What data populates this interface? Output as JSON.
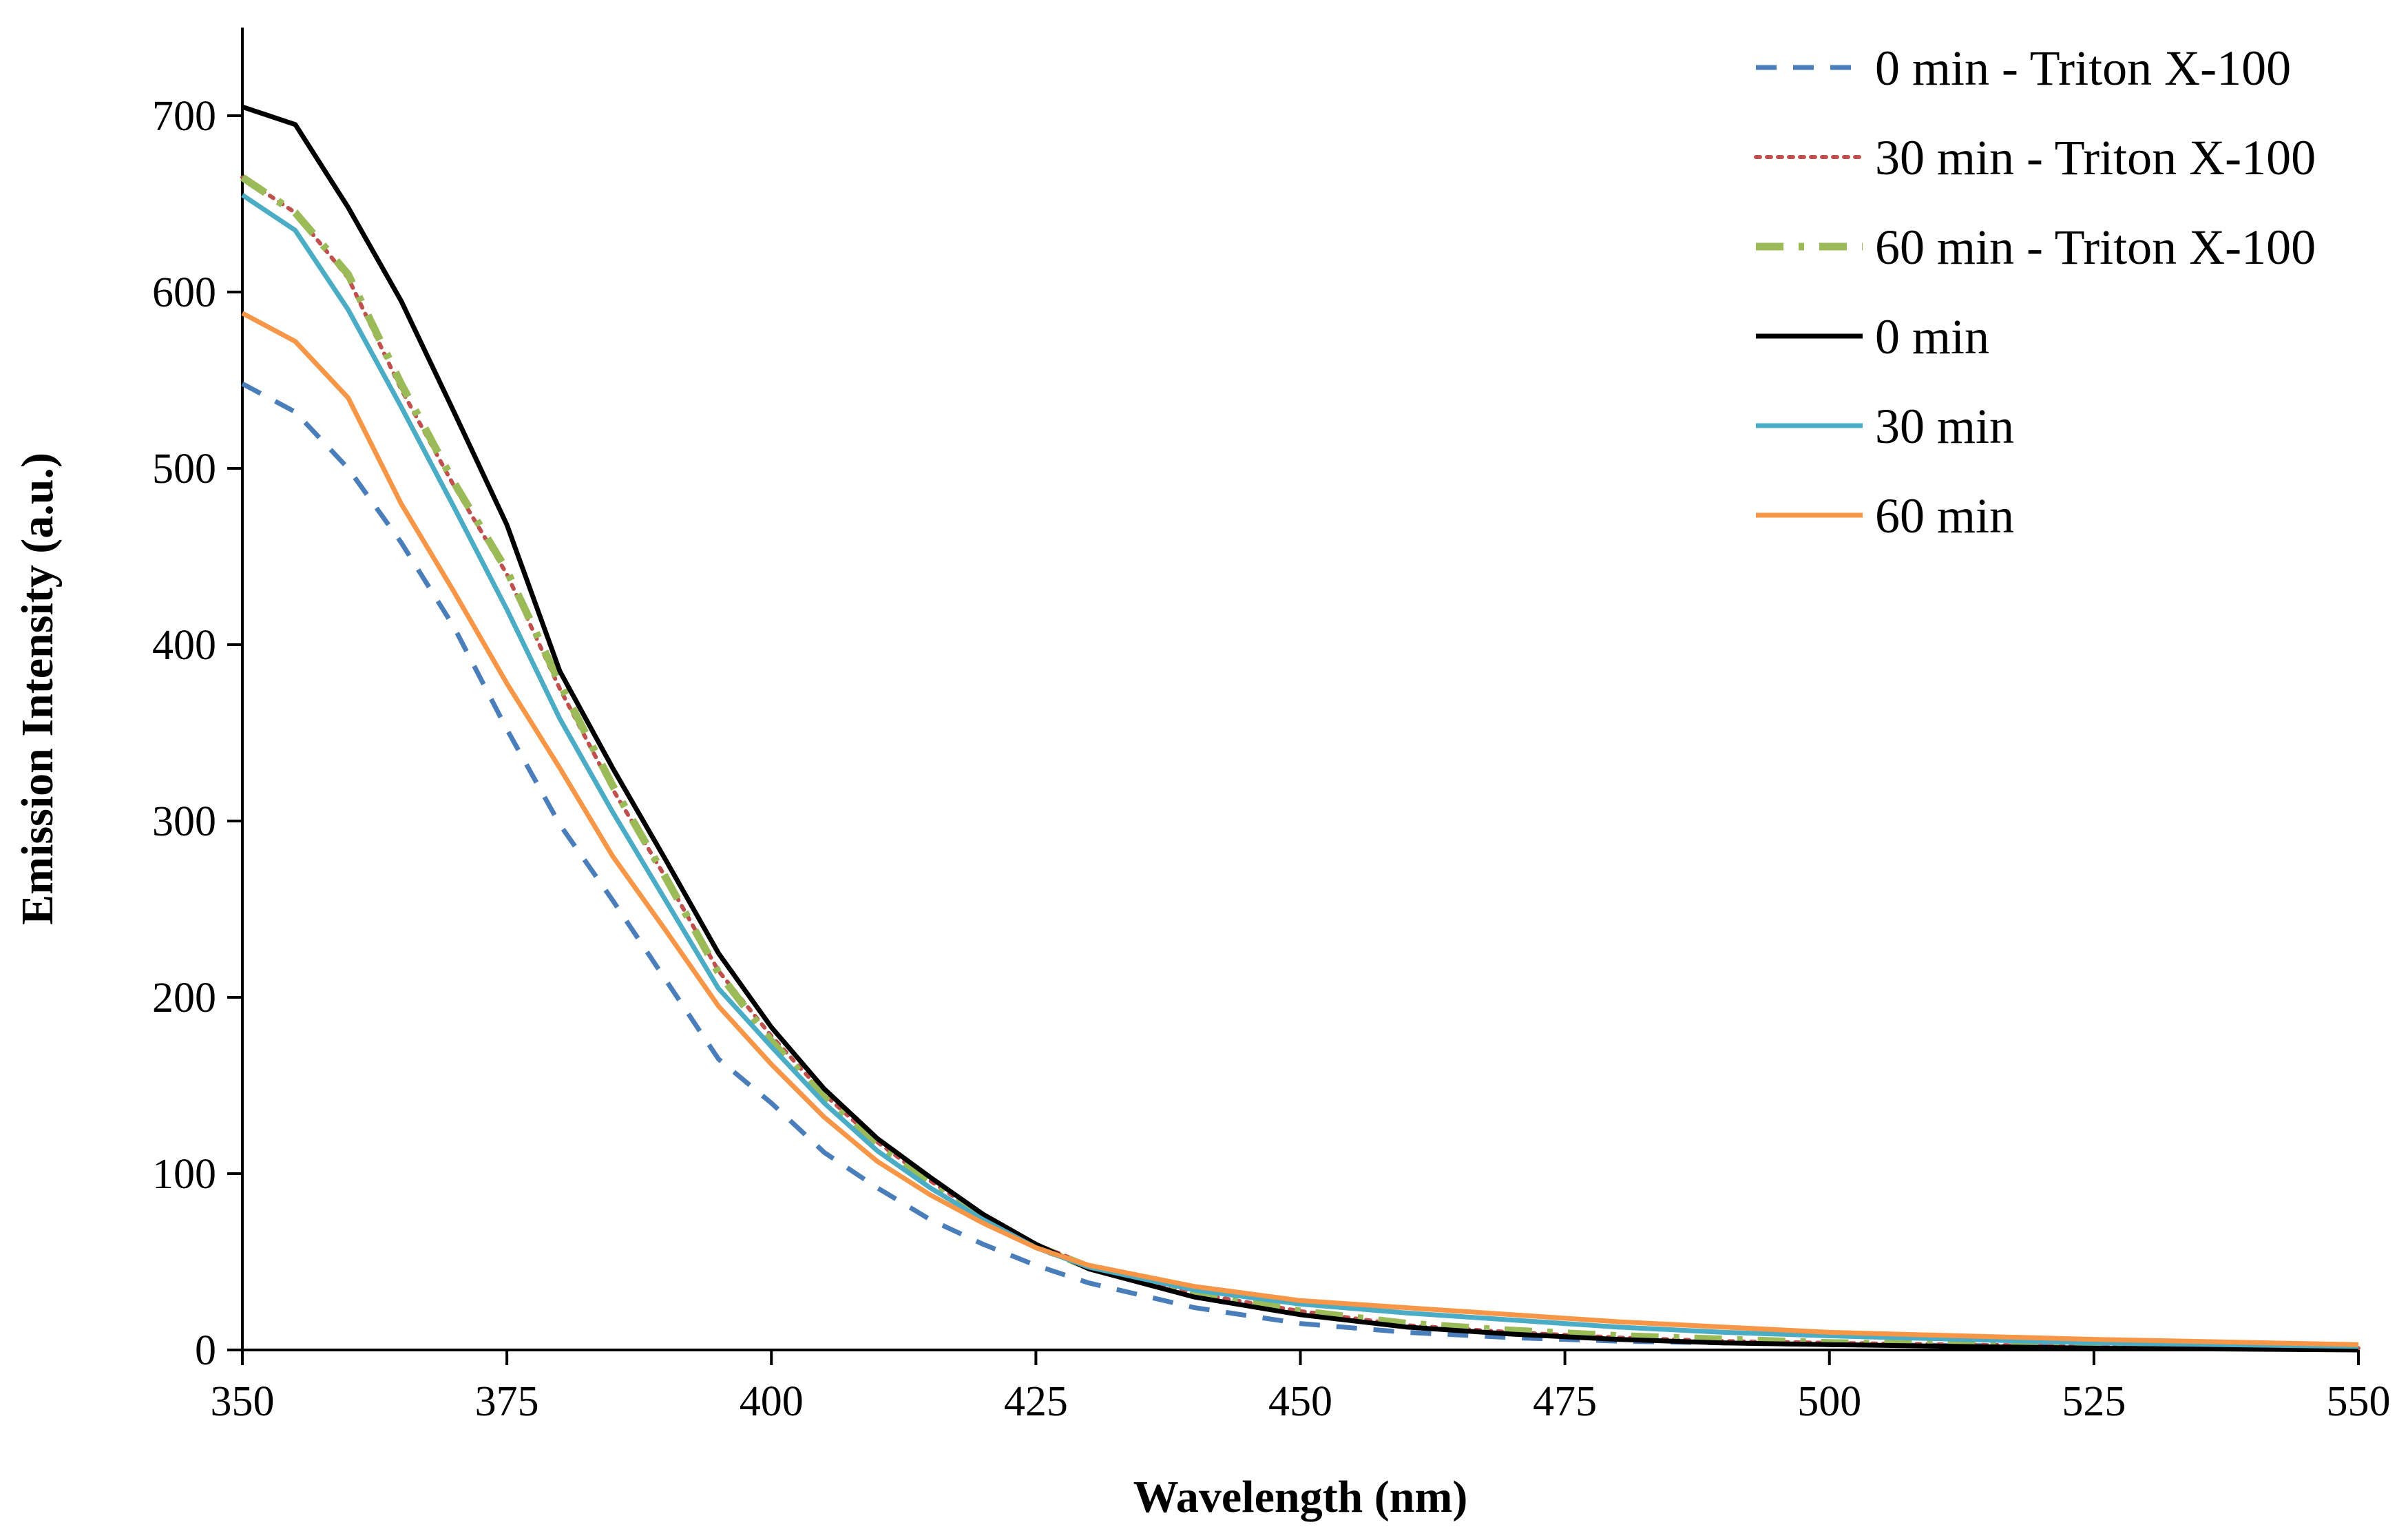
{
  "chart_data": {
    "type": "line",
    "title": "",
    "xlabel": "Wavelength (nm)",
    "ylabel": "Emission Intensity (a.u.)",
    "xlim": [
      350,
      550
    ],
    "ylim": [
      0,
      750
    ],
    "xticks": [
      350,
      375,
      400,
      425,
      450,
      475,
      500,
      525,
      550
    ],
    "yticks": [
      0,
      100,
      200,
      300,
      400,
      500,
      600,
      700
    ],
    "x": [
      350,
      355,
      360,
      365,
      370,
      375,
      380,
      385,
      390,
      395,
      400,
      405,
      410,
      415,
      420,
      425,
      430,
      440,
      450,
      460,
      470,
      480,
      490,
      500,
      525,
      550
    ],
    "legend_position": "top-right",
    "series": [
      {
        "name": "0 min - Triton X-100",
        "color": "#4A7EBB",
        "style": "dashed",
        "values": [
          548,
          532,
          500,
          458,
          410,
          352,
          298,
          255,
          210,
          165,
          140,
          112,
          92,
          74,
          60,
          48,
          38,
          24,
          15,
          10,
          7,
          5,
          4,
          3,
          2,
          1
        ]
      },
      {
        "name": "30 min - Triton X-100",
        "color": "#C0504D",
        "style": "dotted",
        "values": [
          665,
          645,
          608,
          545,
          490,
          440,
          375,
          318,
          268,
          215,
          178,
          145,
          118,
          96,
          76,
          60,
          48,
          32,
          22,
          14,
          10,
          7,
          5,
          4,
          2,
          1
        ]
      },
      {
        "name": "60 min - Triton X-100",
        "color": "#9BBB59",
        "style": "dashdot",
        "values": [
          665,
          645,
          610,
          548,
          492,
          442,
          378,
          320,
          268,
          214,
          175,
          143,
          116,
          95,
          75,
          59,
          47,
          32,
          22,
          15,
          11,
          8,
          6,
          4,
          2,
          1
        ]
      },
      {
        "name": "0 min",
        "color": "#000000",
        "style": "solid",
        "values": [
          705,
          695,
          648,
          595,
          532,
          468,
          385,
          330,
          278,
          225,
          183,
          148,
          120,
          98,
          77,
          60,
          46,
          30,
          20,
          13,
          9,
          6,
          4,
          3,
          1,
          0
        ]
      },
      {
        "name": "30 min",
        "color": "#4BACC6",
        "style": "solid",
        "values": [
          655,
          635,
          590,
          535,
          478,
          420,
          358,
          305,
          255,
          205,
          172,
          140,
          113,
          92,
          74,
          58,
          47,
          34,
          26,
          21,
          17,
          13,
          10,
          8,
          4,
          2
        ]
      },
      {
        "name": "60 min",
        "color": "#F79646",
        "style": "solid",
        "values": [
          588,
          572,
          540,
          480,
          430,
          378,
          330,
          280,
          238,
          195,
          162,
          132,
          107,
          88,
          72,
          58,
          48,
          36,
          28,
          24,
          20,
          16,
          13,
          10,
          6,
          3
        ]
      }
    ]
  }
}
